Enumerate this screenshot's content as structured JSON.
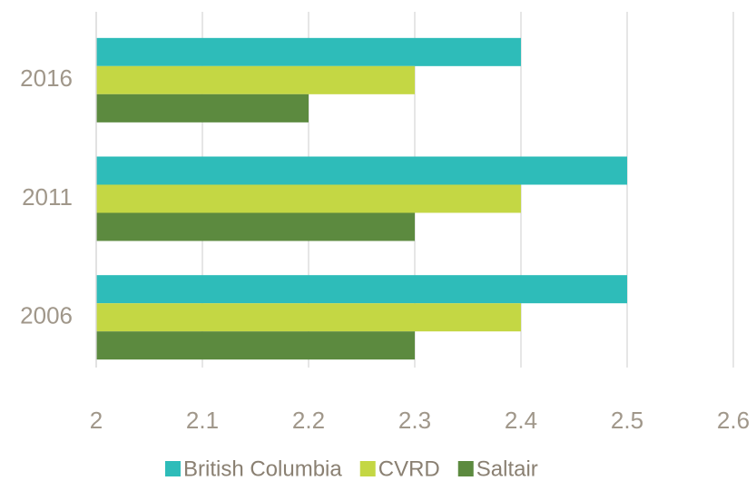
{
  "chart_data": {
    "type": "barh",
    "categories": [
      "2016",
      "2011",
      "2006"
    ],
    "series": [
      {
        "name": "British Columbia",
        "color": "#2ebcb9",
        "values": [
          2.4,
          2.5,
          2.5
        ]
      },
      {
        "name": "CVRD",
        "color": "#c4d744",
        "values": [
          2.3,
          2.4,
          2.4
        ]
      },
      {
        "name": "Saltair",
        "color": "#5c8a3f",
        "values": [
          2.2,
          2.3,
          2.3
        ]
      }
    ],
    "xlim": [
      2,
      2.6
    ],
    "xticks": [
      2,
      2.1,
      2.2,
      2.3,
      2.4,
      2.5,
      2.6
    ],
    "grid": true,
    "legend": "bottom"
  }
}
